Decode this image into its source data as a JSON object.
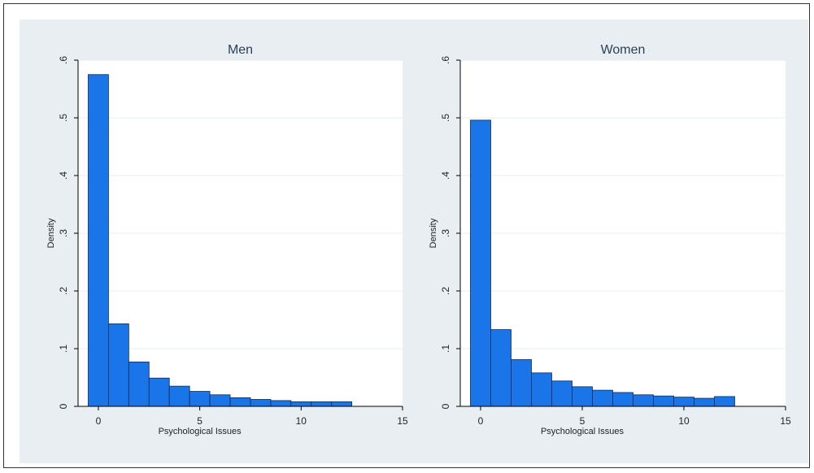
{
  "colors": {
    "background": "#e8eef2",
    "plot_area": "#ffffff",
    "bar_fill": "#1a75e8",
    "bar_stroke": "#0a2a5a",
    "grid": "#e6ecef"
  },
  "chart_data": [
    {
      "type": "bar",
      "title": "Men",
      "xlabel": "Psychological Issues",
      "ylabel": "Density",
      "xlim": [
        -1,
        15
      ],
      "ylim": [
        0,
        0.6
      ],
      "xticks": [
        0,
        5,
        10,
        15
      ],
      "xtick_labels": [
        "0",
        "5",
        "10",
        "15"
      ],
      "yticks": [
        0,
        0.1,
        0.2,
        0.3,
        0.4,
        0.5,
        0.6
      ],
      "ytick_labels": [
        "0",
        ".1",
        ".2",
        ".3",
        ".4",
        ".5",
        ".6"
      ],
      "grid": true,
      "bin_edges": [
        -0.5,
        0.5,
        1.5,
        2.5,
        3.5,
        4.5,
        5.5,
        6.5,
        7.5,
        8.5,
        9.5,
        10.5,
        11.5,
        12.5
      ],
      "values": [
        0.575,
        0.143,
        0.077,
        0.049,
        0.035,
        0.026,
        0.02,
        0.015,
        0.012,
        0.01,
        0.008,
        0.008,
        0.008
      ]
    },
    {
      "type": "bar",
      "title": "Women",
      "xlabel": "Psychological Issues",
      "ylabel": "Density",
      "xlim": [
        -1,
        15
      ],
      "ylim": [
        0,
        0.6
      ],
      "xticks": [
        0,
        5,
        10,
        15
      ],
      "xtick_labels": [
        "0",
        "5",
        "10",
        "15"
      ],
      "yticks": [
        0,
        0.1,
        0.2,
        0.3,
        0.4,
        0.5,
        0.6
      ],
      "ytick_labels": [
        "0",
        ".1",
        ".2",
        ".3",
        ".4",
        ".5",
        ".6"
      ],
      "grid": true,
      "bin_edges": [
        -0.5,
        0.5,
        1.5,
        2.5,
        3.5,
        4.5,
        5.5,
        6.5,
        7.5,
        8.5,
        9.5,
        10.5,
        11.5,
        12.5
      ],
      "values": [
        0.496,
        0.133,
        0.081,
        0.058,
        0.044,
        0.034,
        0.028,
        0.024,
        0.02,
        0.018,
        0.016,
        0.014,
        0.017
      ]
    }
  ]
}
